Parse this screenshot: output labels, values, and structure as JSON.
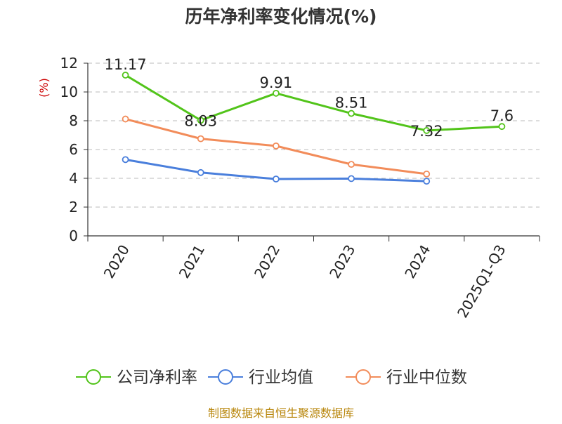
{
  "chart_data": {
    "type": "line",
    "title": "历年净利率变化情况(%)",
    "ylabel": "(%)",
    "categories": [
      "2020",
      "2021",
      "2022",
      "2023",
      "2024",
      "2025Q1-Q3"
    ],
    "ylim": [
      0,
      12
    ],
    "yticks": [
      "0",
      "2",
      "4",
      "6",
      "8",
      "10",
      "12"
    ],
    "grid": true,
    "legend_position": "bottom",
    "series": [
      {
        "name": "公司净利率",
        "color": "#52c41a",
        "values": [
          11.17,
          8.03,
          9.91,
          8.51,
          7.32,
          7.6
        ],
        "labels": [
          "11.17",
          "8.03",
          "9.91",
          "8.51",
          "7.32",
          "7.6"
        ]
      },
      {
        "name": "行业均值",
        "color": "#4a7fdc",
        "values": [
          5.3,
          4.4,
          3.95,
          3.98,
          3.8,
          null
        ]
      },
      {
        "name": "行业中位数",
        "color": "#f28c5a",
        "values": [
          8.12,
          6.75,
          6.25,
          4.97,
          4.3,
          null
        ]
      }
    ]
  },
  "footer": {
    "source": "制图数据来自恒生聚源数据库"
  }
}
